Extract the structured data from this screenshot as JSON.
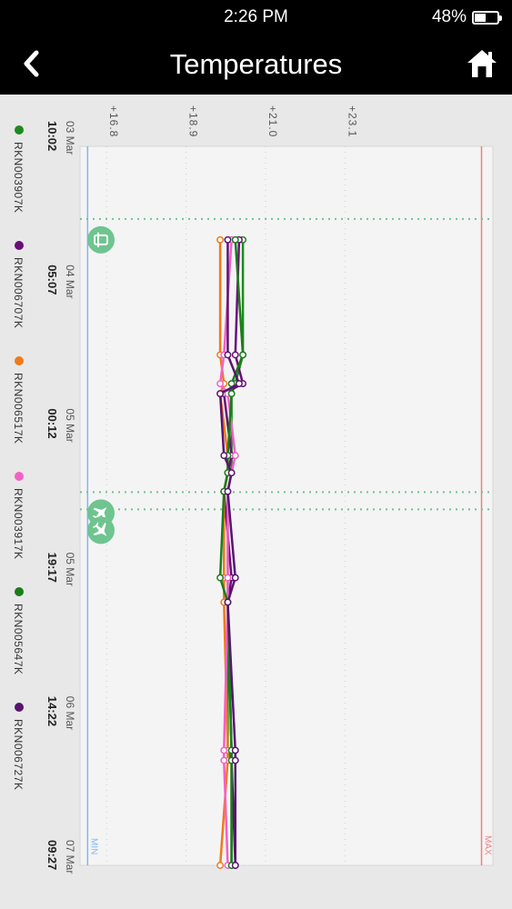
{
  "status_bar": {
    "time": "2:26 PM",
    "battery": "48%",
    "battery_level": 0.48
  },
  "header": {
    "title": "Temperatures",
    "back_icon": "chevron-left-icon",
    "home_icon": "home-icon"
  },
  "colors": {
    "background": "#e8e8e8",
    "plot": "#f4f4f4",
    "min_line": "#7fb8f0",
    "max_line": "#f08080",
    "event": "#6fc490",
    "marker_fill": "#ffffff"
  },
  "chart_data": {
    "type": "line",
    "orientation": "rotated-90",
    "y_ticks": [
      "+16.8",
      "+18.9",
      "+21.0",
      "+23.1"
    ],
    "ylim": [
      16.1,
      27.0
    ],
    "min_label": "MIN",
    "min_value": 16.3,
    "max_label": "MAX",
    "max_value": 26.7,
    "x_ticks": [
      {
        "date": "03 Mar",
        "time": "10:02"
      },
      {
        "date": "04 Mar",
        "time": "05:07"
      },
      {
        "date": "05 Mar",
        "time": "00:12"
      },
      {
        "date": "05 Mar",
        "time": "19:17"
      },
      {
        "date": "06 Mar",
        "time": "14:22"
      },
      {
        "date": "07 Mar",
        "time": "09:27"
      }
    ],
    "events": [
      {
        "icon": "departure-icon",
        "x": 0.65
      },
      {
        "icon": "plane-takeoff-icon",
        "x": 2.55
      },
      {
        "icon": "plane-landing-icon",
        "x": 2.67
      }
    ],
    "x": [
      0.65,
      1.45,
      1.65,
      1.72,
      2.15,
      2.27,
      2.4,
      3.0,
      3.17,
      4.2,
      4.27,
      5.0
    ],
    "series": [
      {
        "name": "RKN003907K",
        "color": "#1e8a1e",
        "values": [
          20.4,
          20.4,
          20.2,
          20.1,
          20.1,
          20.1,
          20.0,
          20.0,
          20.0,
          20.0,
          20.1,
          20.1
        ]
      },
      {
        "name": "RKN006707K",
        "color": "#6a0e7a",
        "values": [
          20.3,
          20.2,
          20.4,
          19.9,
          20.1,
          20.0,
          19.9,
          20.1,
          20.0,
          20.1,
          20.1,
          20.2
        ]
      },
      {
        "name": "RKN006517K",
        "color": "#f07a1a",
        "values": [
          19.8,
          19.8,
          19.9,
          19.8,
          20.0,
          20.0,
          19.9,
          19.9,
          19.9,
          20.0,
          20.0,
          19.8
        ]
      },
      {
        "name": "RKN003917K",
        "color": "#f560c8",
        "values": [
          20.1,
          19.9,
          19.8,
          20.0,
          20.2,
          20.1,
          20.0,
          20.0,
          20.0,
          19.9,
          19.9,
          20.0
        ]
      },
      {
        "name": "RKN005647K",
        "color": "#1a7d1a",
        "values": [
          20.2,
          20.4,
          20.1,
          20.1,
          20.0,
          20.0,
          19.9,
          19.8,
          20.0,
          20.1,
          20.1,
          20.1
        ]
      },
      {
        "name": "RKN006727K",
        "color": "#5a1470",
        "values": [
          20.0,
          20.0,
          20.3,
          19.8,
          19.9,
          20.1,
          20.0,
          20.2,
          20.0,
          20.2,
          20.2,
          20.2
        ]
      }
    ]
  }
}
